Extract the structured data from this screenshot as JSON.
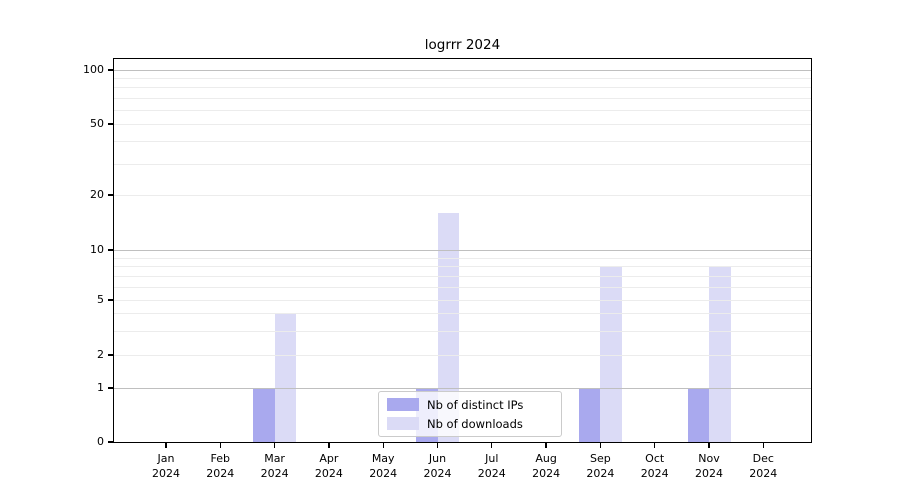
{
  "title": "logrrr 2024",
  "legend": [
    {
      "label": "Nb of distinct IPs",
      "color": "#a9a9ee"
    },
    {
      "label": "Nb of downloads",
      "color": "#dbdbf6"
    }
  ],
  "chart_data": {
    "type": "bar",
    "title": "logrrr 2024",
    "categories": [
      "Jan 2024",
      "Feb 2024",
      "Mar 2024",
      "Apr 2024",
      "May 2024",
      "Jun 2024",
      "Jul 2024",
      "Aug 2024",
      "Sep 2024",
      "Oct 2024",
      "Nov 2024",
      "Dec 2024"
    ],
    "series": [
      {
        "name": "Nb of distinct IPs",
        "color": "#a9a9ee",
        "values": [
          0,
          0,
          1,
          0,
          0,
          1,
          0,
          0,
          1,
          0,
          1,
          0
        ]
      },
      {
        "name": "Nb of downloads",
        "color": "#dbdbf6",
        "values": [
          0,
          0,
          4,
          0,
          0,
          16,
          0,
          0,
          8,
          0,
          8,
          0
        ]
      }
    ],
    "yscale": "log-with-zero (symlog-like)",
    "yticks": [
      0,
      1,
      2,
      5,
      10,
      20,
      50,
      100
    ],
    "minor_gridline_values": [
      2,
      3,
      4,
      5,
      6,
      7,
      8,
      9,
      20,
      30,
      40,
      50,
      60,
      70,
      80,
      90
    ],
    "major_gridline_values": [
      1,
      10,
      100
    ],
    "ylim": [
      0,
      110
    ],
    "xlabel": "",
    "ylabel": "",
    "grid": "horizontal major+minor",
    "legend_position": "lower center"
  }
}
